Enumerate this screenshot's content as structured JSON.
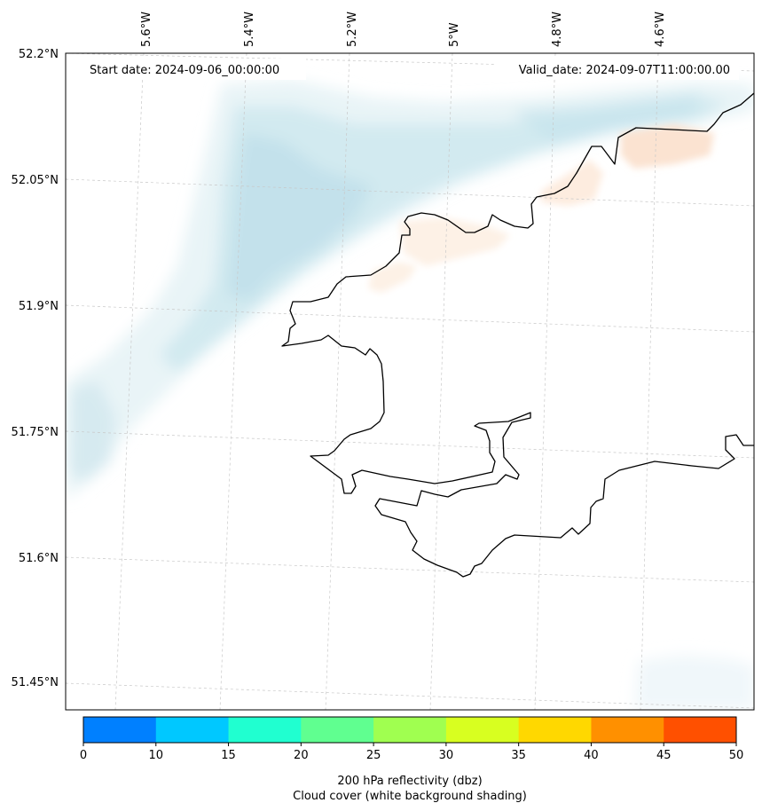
{
  "map": {
    "start_date": "Start date: 2024-09-06_00:00:00",
    "valid_date": "Valid_date: 2024-09-07T11:00:00.00",
    "lon_labels": [
      "5.6°W",
      "5.4°W",
      "5.2°W",
      "5°W",
      "4.8°W",
      "4.6°W"
    ],
    "lat_labels": [
      "52.2°N",
      "52.05°N",
      "51.9°N",
      "51.75°N",
      "51.6°N",
      "51.45°N"
    ]
  },
  "colorbar": {
    "colors": [
      "#0080ff",
      "#00c8ff",
      "#20ffd0",
      "#60ff90",
      "#a0ff50",
      "#d8ff20",
      "#ffd800",
      "#ff9000",
      "#ff5000"
    ],
    "ticks": [
      "0",
      "10",
      "15",
      "20",
      "25",
      "30",
      "35",
      "40",
      "45",
      "50"
    ],
    "label_line1": "200 hPa reflectivity (dbz)",
    "label_line2": "Cloud cover (white background shading)"
  }
}
